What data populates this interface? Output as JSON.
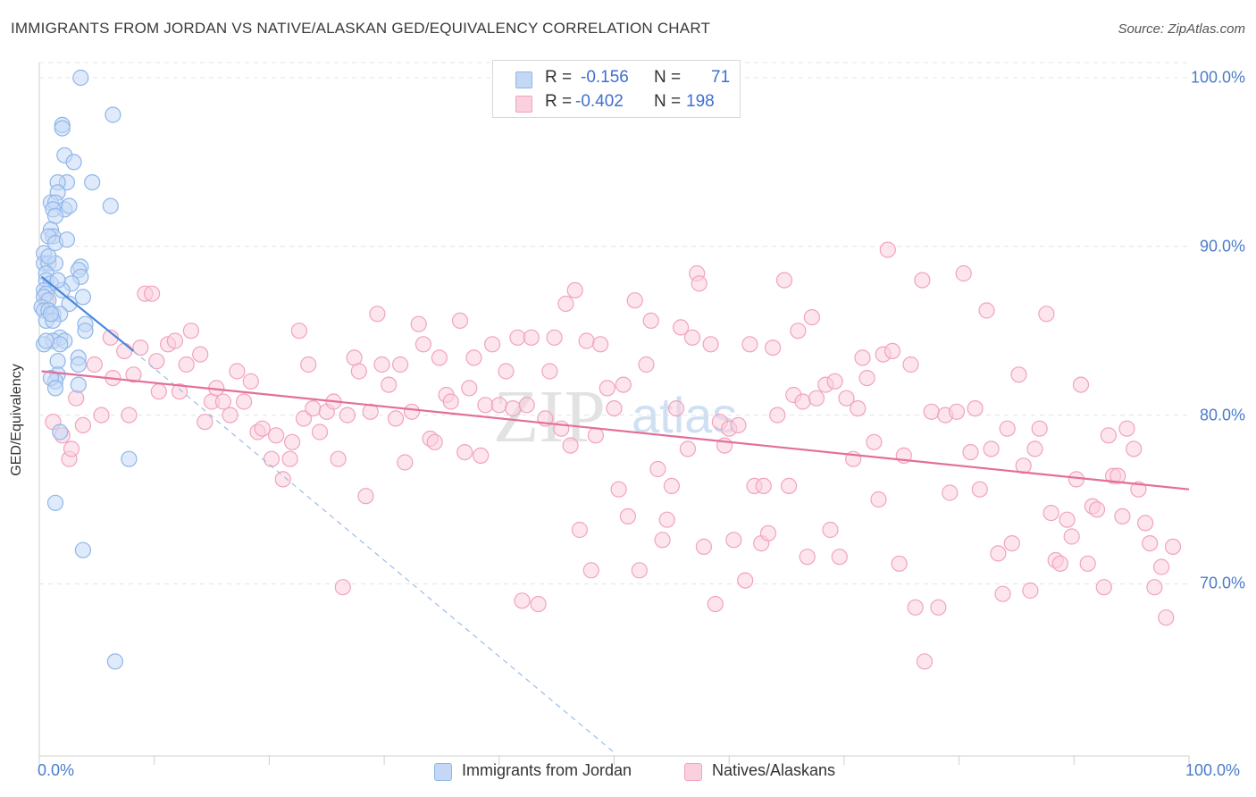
{
  "header": {
    "title": "IMMIGRANTS FROM JORDAN VS NATIVE/ALASKAN GED/EQUIVALENCY CORRELATION CHART",
    "source": "Source: ZipAtlas.com"
  },
  "watermark": {
    "zip": "ZIP",
    "atlas": "atlas"
  },
  "stats": [
    {
      "r_label": "R =",
      "r_value": "-0.156",
      "n_label": "N =",
      "n_value": "71",
      "color": "#8fb6ea",
      "fill": "#c4d8f5"
    },
    {
      "r_label": "R =",
      "r_value": "-0.402",
      "n_label": "N =",
      "n_value": "198",
      "color": "#f1a3bd",
      "fill": "#fbd0de"
    }
  ],
  "legend": [
    {
      "label": "Immigrants from Jordan",
      "color": "#8fb6ea",
      "fill": "#c4d8f5"
    },
    {
      "label": "Natives/Alaskans",
      "color": "#f1a3bd",
      "fill": "#fbd0de"
    }
  ],
  "chart_data": {
    "type": "scatter",
    "title": "IMMIGRANTS FROM JORDAN VS NATIVE/ALASKAN GED/EQUIVALENCY CORRELATION CHART",
    "xlabel": "",
    "ylabel": "GED/Equivalency",
    "xlim": [
      0,
      100
    ],
    "ylim": [
      59.8,
      100.9
    ],
    "x_tick_labels": [
      "0.0%",
      "100.0%"
    ],
    "y_ticks": [
      100,
      90,
      80,
      70
    ],
    "y_tick_labels": [
      "100.0%",
      "90.0%",
      "80.0%",
      "70.0%"
    ],
    "grid": true,
    "series": [
      {
        "name": "Immigrants from Jordan",
        "color": "#4a86d6",
        "point_fill": "#c4d8f5",
        "point_stroke": "#8fb6ea",
        "trend": {
          "x0": 0.2,
          "y0": 88.2,
          "x1": 8.2,
          "y1": 83.8
        },
        "trend_extended": {
          "x0": 8.2,
          "y0": 83.8,
          "x1": 50.0,
          "y1": 60.0
        },
        "points": [
          [
            3.6,
            100.0
          ],
          [
            6.4,
            97.8
          ],
          [
            2.0,
            97.2
          ],
          [
            2.0,
            97.0
          ],
          [
            2.2,
            95.4
          ],
          [
            3.0,
            95.0
          ],
          [
            2.4,
            93.8
          ],
          [
            1.6,
            93.8
          ],
          [
            4.6,
            93.8
          ],
          [
            1.6,
            93.2
          ],
          [
            1.0,
            92.6
          ],
          [
            1.4,
            92.6
          ],
          [
            2.2,
            92.2
          ],
          [
            2.6,
            92.4
          ],
          [
            1.2,
            92.2
          ],
          [
            6.2,
            92.4
          ],
          [
            1.4,
            91.8
          ],
          [
            1.0,
            91.0
          ],
          [
            1.2,
            90.6
          ],
          [
            0.8,
            90.6
          ],
          [
            1.4,
            90.2
          ],
          [
            0.4,
            89.6
          ],
          [
            0.4,
            89.0
          ],
          [
            0.8,
            89.0
          ],
          [
            1.4,
            89.0
          ],
          [
            3.6,
            88.8
          ],
          [
            0.6,
            88.4
          ],
          [
            3.4,
            88.6
          ],
          [
            3.6,
            88.2
          ],
          [
            0.6,
            88.0
          ],
          [
            1.0,
            87.8
          ],
          [
            2.8,
            87.8
          ],
          [
            0.4,
            87.4
          ],
          [
            0.6,
            87.2
          ],
          [
            0.4,
            87.0
          ],
          [
            0.8,
            86.8
          ],
          [
            3.8,
            87.0
          ],
          [
            2.6,
            86.6
          ],
          [
            0.2,
            86.4
          ],
          [
            0.4,
            86.2
          ],
          [
            0.8,
            86.2
          ],
          [
            1.2,
            86.0
          ],
          [
            1.8,
            86.0
          ],
          [
            0.6,
            85.6
          ],
          [
            4.0,
            85.4
          ],
          [
            4.0,
            85.0
          ],
          [
            1.8,
            84.6
          ],
          [
            1.2,
            84.4
          ],
          [
            2.2,
            84.4
          ],
          [
            0.4,
            84.2
          ],
          [
            1.8,
            84.2
          ],
          [
            3.4,
            83.4
          ],
          [
            1.6,
            83.2
          ],
          [
            3.4,
            83.0
          ],
          [
            1.6,
            82.4
          ],
          [
            1.4,
            82.0
          ],
          [
            1.0,
            82.2
          ],
          [
            3.4,
            81.8
          ],
          [
            1.4,
            81.6
          ],
          [
            1.8,
            79.0
          ],
          [
            7.8,
            77.4
          ],
          [
            1.4,
            74.8
          ],
          [
            3.8,
            72.0
          ],
          [
            6.6,
            65.4
          ],
          [
            0.6,
            84.4
          ],
          [
            1.2,
            85.6
          ],
          [
            2.0,
            87.4
          ],
          [
            0.8,
            89.4
          ],
          [
            2.4,
            90.4
          ],
          [
            1.6,
            88.0
          ],
          [
            1.0,
            86.0
          ]
        ]
      },
      {
        "name": "Natives/Alaskans",
        "color": "#e36f98",
        "point_fill": "#fbd0de",
        "point_stroke": "#f1a3bd",
        "trend": {
          "x0": 0.2,
          "y0": 82.6,
          "x1": 100.0,
          "y1": 75.6
        },
        "points": [
          [
            0.6,
            86.8
          ],
          [
            1.2,
            79.6
          ],
          [
            2.0,
            78.8
          ],
          [
            2.6,
            77.4
          ],
          [
            2.8,
            78.0
          ],
          [
            3.2,
            81.0
          ],
          [
            3.8,
            79.4
          ],
          [
            4.8,
            83.0
          ],
          [
            5.4,
            80.0
          ],
          [
            6.2,
            84.6
          ],
          [
            6.4,
            82.2
          ],
          [
            7.4,
            83.8
          ],
          [
            7.8,
            80.0
          ],
          [
            8.2,
            82.4
          ],
          [
            8.8,
            84.0
          ],
          [
            9.2,
            87.2
          ],
          [
            9.8,
            87.2
          ],
          [
            10.2,
            83.2
          ],
          [
            10.4,
            81.4
          ],
          [
            11.2,
            84.2
          ],
          [
            11.8,
            84.4
          ],
          [
            12.2,
            81.4
          ],
          [
            12.8,
            83.0
          ],
          [
            13.2,
            85.0
          ],
          [
            14.0,
            83.6
          ],
          [
            14.4,
            79.6
          ],
          [
            15.0,
            80.8
          ],
          [
            15.4,
            81.6
          ],
          [
            16.0,
            80.8
          ],
          [
            16.6,
            80.0
          ],
          [
            17.2,
            82.6
          ],
          [
            17.8,
            80.8
          ],
          [
            18.4,
            82.0
          ],
          [
            19.0,
            79.0
          ],
          [
            19.4,
            79.2
          ],
          [
            20.2,
            77.4
          ],
          [
            20.6,
            78.8
          ],
          [
            21.2,
            76.2
          ],
          [
            21.8,
            77.4
          ],
          [
            22.0,
            78.4
          ],
          [
            22.6,
            85.0
          ],
          [
            23.0,
            79.8
          ],
          [
            23.4,
            83.0
          ],
          [
            23.8,
            80.4
          ],
          [
            24.4,
            79.0
          ],
          [
            25.0,
            80.2
          ],
          [
            25.6,
            80.8
          ],
          [
            26.0,
            77.4
          ],
          [
            26.4,
            69.8
          ],
          [
            26.8,
            80.0
          ],
          [
            27.4,
            83.4
          ],
          [
            27.8,
            82.6
          ],
          [
            28.4,
            75.2
          ],
          [
            28.8,
            80.2
          ],
          [
            29.4,
            86.0
          ],
          [
            29.8,
            83.0
          ],
          [
            30.4,
            81.8
          ],
          [
            31.0,
            79.8
          ],
          [
            31.4,
            83.0
          ],
          [
            31.8,
            77.2
          ],
          [
            32.4,
            80.2
          ],
          [
            33.0,
            85.4
          ],
          [
            33.4,
            84.2
          ],
          [
            34.0,
            78.6
          ],
          [
            34.4,
            78.4
          ],
          [
            34.8,
            83.4
          ],
          [
            35.4,
            81.2
          ],
          [
            35.8,
            80.8
          ],
          [
            36.6,
            85.6
          ],
          [
            37.0,
            77.8
          ],
          [
            37.4,
            81.6
          ],
          [
            37.8,
            83.4
          ],
          [
            38.4,
            77.6
          ],
          [
            38.8,
            80.6
          ],
          [
            39.4,
            84.2
          ],
          [
            40.0,
            80.6
          ],
          [
            40.6,
            82.6
          ],
          [
            41.2,
            80.4
          ],
          [
            41.6,
            84.6
          ],
          [
            42.0,
            69.0
          ],
          [
            42.4,
            80.6
          ],
          [
            42.8,
            84.6
          ],
          [
            43.4,
            68.8
          ],
          [
            44.0,
            79.8
          ],
          [
            44.4,
            82.6
          ],
          [
            44.8,
            84.6
          ],
          [
            45.4,
            79.2
          ],
          [
            45.8,
            86.6
          ],
          [
            46.2,
            78.2
          ],
          [
            46.6,
            87.4
          ],
          [
            47.0,
            73.2
          ],
          [
            47.6,
            84.4
          ],
          [
            48.0,
            70.8
          ],
          [
            48.4,
            78.8
          ],
          [
            48.8,
            84.2
          ],
          [
            49.4,
            81.6
          ],
          [
            50.0,
            80.4
          ],
          [
            50.4,
            75.6
          ],
          [
            50.8,
            81.8
          ],
          [
            51.2,
            74.0
          ],
          [
            51.8,
            86.8
          ],
          [
            52.2,
            70.8
          ],
          [
            52.8,
            83.0
          ],
          [
            53.2,
            85.6
          ],
          [
            53.8,
            76.8
          ],
          [
            54.2,
            72.6
          ],
          [
            54.6,
            73.8
          ],
          [
            55.0,
            75.8
          ],
          [
            55.4,
            80.4
          ],
          [
            55.8,
            85.2
          ],
          [
            56.4,
            78.0
          ],
          [
            56.8,
            84.6
          ],
          [
            57.2,
            88.4
          ],
          [
            57.4,
            87.8
          ],
          [
            57.8,
            72.2
          ],
          [
            58.4,
            84.2
          ],
          [
            58.8,
            68.8
          ],
          [
            59.2,
            79.6
          ],
          [
            59.6,
            78.2
          ],
          [
            60.0,
            79.2
          ],
          [
            60.4,
            72.6
          ],
          [
            60.8,
            79.4
          ],
          [
            61.4,
            70.2
          ],
          [
            61.8,
            84.2
          ],
          [
            62.2,
            75.8
          ],
          [
            62.8,
            72.4
          ],
          [
            63.0,
            75.8
          ],
          [
            63.4,
            73.0
          ],
          [
            63.8,
            84.0
          ],
          [
            64.2,
            80.0
          ],
          [
            64.8,
            88.0
          ],
          [
            65.2,
            75.8
          ],
          [
            65.6,
            81.2
          ],
          [
            66.0,
            85.0
          ],
          [
            66.4,
            80.8
          ],
          [
            66.8,
            71.6
          ],
          [
            67.2,
            85.8
          ],
          [
            67.6,
            81.0
          ],
          [
            68.4,
            81.8
          ],
          [
            68.8,
            73.2
          ],
          [
            69.2,
            82.0
          ],
          [
            69.6,
            71.6
          ],
          [
            70.2,
            81.0
          ],
          [
            70.8,
            77.4
          ],
          [
            71.2,
            80.4
          ],
          [
            71.6,
            83.4
          ],
          [
            72.0,
            82.2
          ],
          [
            72.6,
            78.4
          ],
          [
            73.0,
            75.0
          ],
          [
            73.4,
            83.6
          ],
          [
            73.8,
            89.8
          ],
          [
            74.2,
            83.8
          ],
          [
            74.8,
            71.2
          ],
          [
            75.2,
            77.6
          ],
          [
            75.8,
            83.0
          ],
          [
            76.2,
            68.6
          ],
          [
            76.8,
            88.0
          ],
          [
            77.0,
            65.4
          ],
          [
            77.6,
            80.2
          ],
          [
            78.2,
            68.6
          ],
          [
            78.8,
            80.0
          ],
          [
            79.2,
            75.4
          ],
          [
            79.8,
            80.2
          ],
          [
            80.4,
            88.4
          ],
          [
            81.0,
            77.8
          ],
          [
            81.4,
            80.4
          ],
          [
            81.8,
            75.6
          ],
          [
            82.4,
            86.2
          ],
          [
            82.8,
            78.0
          ],
          [
            83.4,
            71.8
          ],
          [
            83.8,
            69.4
          ],
          [
            84.2,
            79.2
          ],
          [
            84.6,
            72.4
          ],
          [
            85.2,
            82.4
          ],
          [
            85.6,
            77.0
          ],
          [
            86.2,
            69.6
          ],
          [
            86.6,
            78.0
          ],
          [
            87.0,
            79.2
          ],
          [
            87.6,
            86.0
          ],
          [
            88.0,
            74.2
          ],
          [
            88.4,
            71.4
          ],
          [
            88.8,
            71.2
          ],
          [
            89.4,
            73.8
          ],
          [
            89.8,
            72.8
          ],
          [
            90.2,
            76.2
          ],
          [
            90.6,
            81.8
          ],
          [
            91.2,
            71.2
          ],
          [
            91.6,
            74.6
          ],
          [
            92.0,
            74.4
          ],
          [
            92.6,
            69.8
          ],
          [
            93.0,
            78.8
          ],
          [
            93.4,
            76.4
          ],
          [
            93.8,
            76.4
          ],
          [
            94.2,
            74.0
          ],
          [
            94.6,
            79.2
          ],
          [
            95.2,
            78.0
          ],
          [
            95.6,
            75.6
          ],
          [
            96.2,
            73.6
          ],
          [
            96.6,
            72.4
          ],
          [
            97.0,
            69.8
          ],
          [
            97.6,
            71.0
          ],
          [
            98.0,
            68.0
          ],
          [
            98.6,
            72.2
          ]
        ]
      }
    ]
  }
}
